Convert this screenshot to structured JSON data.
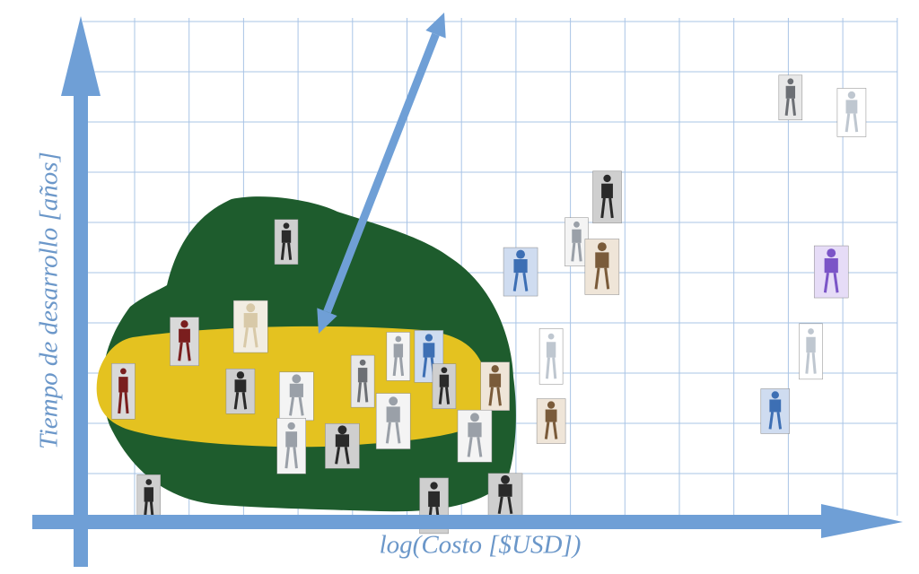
{
  "chart_data": {
    "type": "scatter",
    "xlabel": "log(Costo [$USD])",
    "ylabel": "Tiempo de desarrollo [años]",
    "grid": true,
    "annotations": [
      "Double-headed arrow pointing between the clustered low-cost robots and the upper chart area"
    ],
    "points": [
      {
        "id": "robot-black-frame",
        "x": 4.0,
        "y": 5.5,
        "tone": "dark"
      },
      {
        "id": "robot-red-torso",
        "x": 2.0,
        "y": 3.5,
        "tone": "red"
      },
      {
        "id": "robot-beige-sketch",
        "x": 3.3,
        "y": 3.8,
        "tone": "beige"
      },
      {
        "id": "robot-red-arm",
        "x": 0.8,
        "y": 2.5,
        "tone": "red"
      },
      {
        "id": "robot-wire-legs",
        "x": 3.1,
        "y": 2.5,
        "tone": "dark"
      },
      {
        "id": "robot-silver-legs",
        "x": 4.2,
        "y": 2.4,
        "tone": "silver"
      },
      {
        "id": "robot-grey-walker",
        "x": 5.5,
        "y": 2.7,
        "tone": "grey"
      },
      {
        "id": "robot-lab-small",
        "x": 4.1,
        "y": 1.4,
        "tone": "silver"
      },
      {
        "id": "robot-stick-legs",
        "x": 5.1,
        "y": 1.4,
        "tone": "dark"
      },
      {
        "id": "robot-aluminum-a",
        "x": 6.2,
        "y": 3.2,
        "tone": "silver"
      },
      {
        "id": "robot-blue-frame",
        "x": 6.8,
        "y": 3.2,
        "tone": "blue"
      },
      {
        "id": "robot-knee-bent",
        "x": 6.1,
        "y": 1.9,
        "tone": "silver"
      },
      {
        "id": "robot-dark-legs",
        "x": 7.1,
        "y": 2.6,
        "tone": "dark"
      },
      {
        "id": "robot-brown-pair",
        "x": 8.1,
        "y": 2.6,
        "tone": "brown"
      },
      {
        "id": "robot-silver-pair",
        "x": 7.7,
        "y": 1.6,
        "tone": "silver"
      },
      {
        "id": "robot-tall-white",
        "x": 9.2,
        "y": 3.2,
        "tone": "white"
      },
      {
        "id": "robot-orange-ball",
        "x": 9.2,
        "y": 1.9,
        "tone": "brown"
      },
      {
        "id": "robot-blue-panel",
        "x": 8.6,
        "y": 4.9,
        "tone": "blue"
      },
      {
        "id": "robot-black-box",
        "x": 1.3,
        "y": 0.3,
        "tone": "dark"
      },
      {
        "id": "robot-humanoid-kit",
        "x": 6.9,
        "y": 0.2,
        "tone": "dark"
      },
      {
        "id": "robot-humanoid-mini",
        "x": 8.3,
        "y": 0.4,
        "tone": "dark"
      },
      {
        "id": "robot-steel-legs",
        "x": 9.7,
        "y": 5.5,
        "tone": "silver"
      },
      {
        "id": "robot-dome-head",
        "x": 10.3,
        "y": 6.4,
        "tone": "dark"
      },
      {
        "id": "robot-bronze-legs",
        "x": 10.2,
        "y": 5.0,
        "tone": "brown"
      },
      {
        "id": "robot-gantry",
        "x": 13.9,
        "y": 8.4,
        "tone": "grey"
      },
      {
        "id": "robot-white-humanoid",
        "x": 15.1,
        "y": 8.1,
        "tone": "white"
      },
      {
        "id": "robot-purple-humanoid",
        "x": 14.7,
        "y": 4.9,
        "tone": "purple"
      },
      {
        "id": "robot-carrying-box",
        "x": 14.3,
        "y": 3.3,
        "tone": "white"
      },
      {
        "id": "robot-blue-humanoid",
        "x": 13.6,
        "y": 2.1,
        "tone": "blue"
      }
    ]
  }
}
